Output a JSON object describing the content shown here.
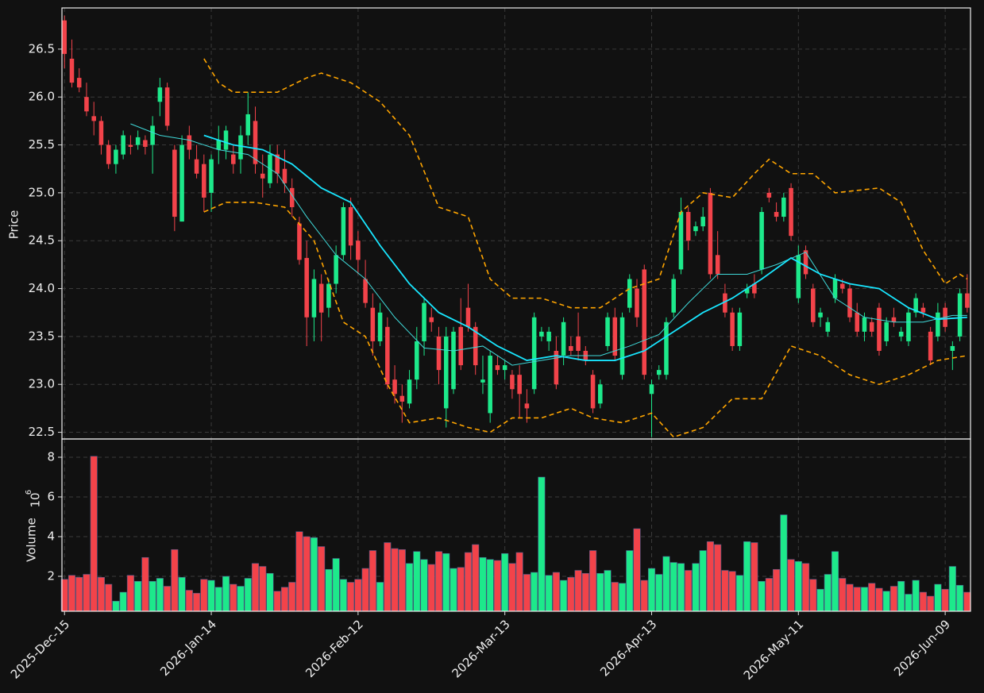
{
  "chart_data": {
    "type": "candlestick",
    "y_label": "Price",
    "volume_label": "Volume",
    "volume_offset_base": "10",
    "volume_offset_exponent": "6",
    "up_color": "#1de98b",
    "down_color": "#f2434a",
    "grid": true,
    "xlim": [
      -0.35,
      123.45
    ],
    "xticks": [
      {
        "value": 0,
        "label": "2025-Dec-15"
      },
      {
        "value": 20,
        "label": "2026-Jan-14"
      },
      {
        "value": 40,
        "label": "2026-Feb-12"
      },
      {
        "value": 60,
        "label": "2026-Mar-13"
      },
      {
        "value": 80,
        "label": "2026-Apr-13"
      },
      {
        "value": 100,
        "label": "2026-May-11"
      },
      {
        "value": 120,
        "label": "2026-Jun-09"
      }
    ],
    "ylim": [
      22.43,
      26.93
    ],
    "yticks": [
      22.5,
      {
        "value": 23,
        "label": "23.0"
      },
      23.5,
      {
        "value": 24,
        "label": "24.0"
      },
      24.5,
      {
        "value": 25,
        "label": "25.0"
      },
      25.5,
      {
        "value": 26,
        "label": "26.0"
      },
      26.5
    ],
    "volume_ylim": [
      0.24,
      8.92
    ],
    "volume_yticks": [
      2,
      4,
      6,
      8
    ],
    "ohlc": [
      [
        26.8,
        26.85,
        26.3,
        26.45
      ],
      [
        26.4,
        26.6,
        26.1,
        26.15
      ],
      [
        26.2,
        26.3,
        26.05,
        26.1
      ],
      [
        26.0,
        26.15,
        25.8,
        25.85
      ],
      [
        25.8,
        25.95,
        25.6,
        25.75
      ],
      [
        25.75,
        25.8,
        25.4,
        25.5
      ],
      [
        25.5,
        25.55,
        25.25,
        25.3
      ],
      [
        25.3,
        25.5,
        25.2,
        25.45
      ],
      [
        25.4,
        25.65,
        25.35,
        25.6
      ],
      [
        25.5,
        25.6,
        25.4,
        25.48
      ],
      [
        25.5,
        25.65,
        25.45,
        25.58
      ],
      [
        25.55,
        25.6,
        25.4,
        25.48
      ],
      [
        25.5,
        25.8,
        25.2,
        25.7
      ],
      [
        25.95,
        26.2,
        25.8,
        26.1
      ],
      [
        26.1,
        26.15,
        25.65,
        25.7
      ],
      [
        25.45,
        25.5,
        24.6,
        24.75
      ],
      [
        24.7,
        25.6,
        24.7,
        25.5
      ],
      [
        25.6,
        25.7,
        25.35,
        25.45
      ],
      [
        25.35,
        25.5,
        25.15,
        25.2
      ],
      [
        25.3,
        25.4,
        24.8,
        24.95
      ],
      [
        25.0,
        25.4,
        24.8,
        25.35
      ],
      [
        25.45,
        25.7,
        25.3,
        25.55
      ],
      [
        25.45,
        25.7,
        25.35,
        25.65
      ],
      [
        25.4,
        25.5,
        25.2,
        25.3
      ],
      [
        25.35,
        25.7,
        25.2,
        25.6
      ],
      [
        25.6,
        26.05,
        25.5,
        25.82
      ],
      [
        25.75,
        25.9,
        25.2,
        25.3
      ],
      [
        25.2,
        25.4,
        24.95,
        25.15
      ],
      [
        25.1,
        25.5,
        25.05,
        25.4
      ],
      [
        25.4,
        25.5,
        25.1,
        25.2
      ],
      [
        25.25,
        25.45,
        25.0,
        25.1
      ],
      [
        25.05,
        25.15,
        24.75,
        24.85
      ],
      [
        24.68,
        24.75,
        24.25,
        24.3
      ],
      [
        24.32,
        24.5,
        23.4,
        23.7
      ],
      [
        23.7,
        24.2,
        23.45,
        24.1
      ],
      [
        24.05,
        24.15,
        23.45,
        23.75
      ],
      [
        23.8,
        24.1,
        23.7,
        24.05
      ],
      [
        24.05,
        24.45,
        23.95,
        24.35
      ],
      [
        24.35,
        24.9,
        24.3,
        24.85
      ],
      [
        24.85,
        24.95,
        24.3,
        24.45
      ],
      [
        24.5,
        24.6,
        24.15,
        24.3
      ],
      [
        24.1,
        24.3,
        23.8,
        23.85
      ],
      [
        23.8,
        23.95,
        23.3,
        23.45
      ],
      [
        23.45,
        23.85,
        23.4,
        23.75
      ],
      [
        23.6,
        23.7,
        22.95,
        23.0
      ],
      [
        23.05,
        23.2,
        22.8,
        22.9
      ],
      [
        22.88,
        23.0,
        22.6,
        22.82
      ],
      [
        22.8,
        23.15,
        22.75,
        23.05
      ],
      [
        23.05,
        23.6,
        22.95,
        23.45
      ],
      [
        23.45,
        23.9,
        23.3,
        23.85
      ],
      [
        23.7,
        23.8,
        23.55,
        23.65
      ],
      [
        23.5,
        23.6,
        23.0,
        23.15
      ],
      [
        22.75,
        23.6,
        22.55,
        23.5
      ],
      [
        22.95,
        23.6,
        22.9,
        23.55
      ],
      [
        23.6,
        23.9,
        23.15,
        23.2
      ],
      [
        23.8,
        24.05,
        23.55,
        23.6
      ],
      [
        23.6,
        23.65,
        23.1,
        23.2
      ],
      [
        23.02,
        23.3,
        22.9,
        23.05
      ],
      [
        22.7,
        23.35,
        22.6,
        23.3
      ],
      [
        23.2,
        23.3,
        23.1,
        23.15
      ],
      [
        23.15,
        23.25,
        23.05,
        23.2
      ],
      [
        23.1,
        23.15,
        22.85,
        22.95
      ],
      [
        23.1,
        23.2,
        22.65,
        22.9
      ],
      [
        22.8,
        22.95,
        22.6,
        22.75
      ],
      [
        22.95,
        23.75,
        22.9,
        23.7
      ],
      [
        23.5,
        23.6,
        23.45,
        23.55
      ],
      [
        23.45,
        23.6,
        23.35,
        23.55
      ],
      [
        23.35,
        23.5,
        22.95,
        23.0
      ],
      [
        23.3,
        23.7,
        23.2,
        23.65
      ],
      [
        23.4,
        23.5,
        23.3,
        23.35
      ],
      [
        23.5,
        23.75,
        23.25,
        23.35
      ],
      [
        23.35,
        23.4,
        23.2,
        23.25
      ],
      [
        23.1,
        23.15,
        22.7,
        22.75
      ],
      [
        22.8,
        23.05,
        22.75,
        23.0
      ],
      [
        23.4,
        23.75,
        23.35,
        23.7
      ],
      [
        23.7,
        23.8,
        23.25,
        23.3
      ],
      [
        23.1,
        23.75,
        23.05,
        23.7
      ],
      [
        23.8,
        24.15,
        23.75,
        24.1
      ],
      [
        24.0,
        24.1,
        23.6,
        23.7
      ],
      [
        24.2,
        24.25,
        23.05,
        23.1
      ],
      [
        22.9,
        23.05,
        22.45,
        23.0
      ],
      [
        23.1,
        23.2,
        23.05,
        23.15
      ],
      [
        23.1,
        23.7,
        23.05,
        23.65
      ],
      [
        23.75,
        24.15,
        23.7,
        24.1
      ],
      [
        24.2,
        24.95,
        24.15,
        24.8
      ],
      [
        24.8,
        24.85,
        24.4,
        24.5
      ],
      [
        24.6,
        24.7,
        24.55,
        24.65
      ],
      [
        24.65,
        24.85,
        24.6,
        24.75
      ],
      [
        25.0,
        25.05,
        24.1,
        24.15
      ],
      [
        24.35,
        24.6,
        24.1,
        24.15
      ],
      [
        23.95,
        24.05,
        23.7,
        23.75
      ],
      [
        23.75,
        23.8,
        23.35,
        23.4
      ],
      [
        23.4,
        23.8,
        23.35,
        23.75
      ],
      [
        23.95,
        24.05,
        23.9,
        24.0
      ],
      [
        24.05,
        24.15,
        23.9,
        23.95
      ],
      [
        24.2,
        24.85,
        24.15,
        24.8
      ],
      [
        25.0,
        25.05,
        24.9,
        24.95
      ],
      [
        24.8,
        24.9,
        24.7,
        24.75
      ],
      [
        24.75,
        25.0,
        24.7,
        24.95
      ],
      [
        25.05,
        25.1,
        24.5,
        24.55
      ],
      [
        23.9,
        24.45,
        23.85,
        24.35
      ],
      [
        24.4,
        24.45,
        24.1,
        24.15
      ],
      [
        24.0,
        24.05,
        23.6,
        23.65
      ],
      [
        23.7,
        23.8,
        23.6,
        23.75
      ],
      [
        23.55,
        23.7,
        23.5,
        23.65
      ],
      [
        23.9,
        24.15,
        23.85,
        24.1
      ],
      [
        24.05,
        24.1,
        23.95,
        24.0
      ],
      [
        24.0,
        24.05,
        23.65,
        23.7
      ],
      [
        23.75,
        23.85,
        23.5,
        23.55
      ],
      [
        23.55,
        23.75,
        23.45,
        23.7
      ],
      [
        23.65,
        23.7,
        23.5,
        23.55
      ],
      [
        23.8,
        23.85,
        23.3,
        23.35
      ],
      [
        23.45,
        23.7,
        23.4,
        23.65
      ],
      [
        23.7,
        23.8,
        23.6,
        23.65
      ],
      [
        23.5,
        23.6,
        23.45,
        23.55
      ],
      [
        23.45,
        23.8,
        23.4,
        23.75
      ],
      [
        23.75,
        23.95,
        23.7,
        23.9
      ],
      [
        23.8,
        23.85,
        23.7,
        23.75
      ],
      [
        23.55,
        23.6,
        23.2,
        23.25
      ],
      [
        23.5,
        23.85,
        23.45,
        23.75
      ],
      [
        23.8,
        23.85,
        23.55,
        23.6
      ],
      [
        23.35,
        23.45,
        23.15,
        23.4
      ],
      [
        23.5,
        24.0,
        23.45,
        23.95
      ],
      [
        23.95,
        24.15,
        23.75,
        23.8
      ]
    ],
    "volume": [
      1.85,
      2.05,
      1.95,
      2.1,
      8.05,
      1.95,
      1.6,
      0.75,
      1.2,
      2.05,
      1.75,
      2.95,
      1.75,
      1.9,
      1.5,
      3.35,
      1.95,
      1.3,
      1.15,
      1.85,
      1.8,
      1.45,
      2.0,
      1.6,
      1.5,
      1.9,
      2.65,
      2.5,
      2.15,
      1.25,
      1.45,
      1.7,
      4.25,
      4.0,
      3.95,
      3.5,
      2.35,
      2.9,
      1.85,
      1.7,
      1.85,
      2.4,
      3.3,
      1.7,
      3.7,
      3.4,
      3.35,
      2.65,
      3.25,
      2.85,
      2.6,
      3.25,
      3.15,
      2.4,
      2.45,
      3.2,
      3.6,
      2.95,
      2.85,
      2.8,
      3.15,
      2.65,
      3.2,
      2.1,
      2.2,
      7.0,
      2.05,
      2.2,
      1.8,
      1.95,
      2.3,
      2.15,
      3.3,
      2.15,
      2.3,
      1.7,
      1.65,
      3.3,
      4.4,
      1.8,
      2.4,
      2.1,
      3.0,
      2.7,
      2.65,
      2.3,
      2.65,
      3.3,
      3.75,
      3.6,
      2.3,
      2.25,
      2.05,
      3.75,
      3.7,
      1.75,
      1.9,
      2.35,
      5.1,
      2.85,
      2.75,
      2.65,
      1.85,
      1.35,
      2.1,
      3.25,
      1.9,
      1.6,
      1.45,
      1.45,
      1.65,
      1.4,
      1.25,
      1.5,
      1.75,
      1.1,
      1.8,
      1.2,
      1.0,
      1.6,
      1.35,
      2.5,
      1.55,
      1.2
    ],
    "lines": [
      {
        "color": "#3fd9d9",
        "dashed": false,
        "x": [
          9,
          13,
          17,
          21,
          25,
          29,
          33,
          37,
          41,
          45,
          49,
          53,
          57,
          61,
          65,
          69,
          73,
          77,
          81,
          85,
          89,
          93,
          97,
          101,
          105,
          109,
          113,
          117,
          121,
          123
        ],
        "values": [
          25.72,
          25.6,
          25.55,
          25.45,
          25.4,
          25.2,
          24.75,
          24.35,
          24.1,
          23.7,
          23.38,
          23.35,
          23.4,
          23.2,
          23.25,
          23.3,
          23.3,
          23.4,
          23.52,
          23.85,
          24.15,
          24.15,
          24.25,
          24.38,
          23.9,
          23.7,
          23.65,
          23.65,
          23.72,
          23.72
        ]
      },
      {
        "color": "#18e6ff",
        "dashed": false,
        "x": [
          19,
          23,
          27,
          31,
          35,
          39,
          43,
          47,
          51,
          55,
          59,
          63,
          67,
          71,
          75,
          79,
          83,
          87,
          91,
          95,
          99,
          103,
          107,
          111,
          115,
          119,
          123
        ],
        "values": [
          25.6,
          25.5,
          25.45,
          25.3,
          25.05,
          24.9,
          24.45,
          24.05,
          23.75,
          23.6,
          23.4,
          23.25,
          23.3,
          23.25,
          23.25,
          23.35,
          23.55,
          23.75,
          23.9,
          24.1,
          24.32,
          24.15,
          24.05,
          24.0,
          23.8,
          23.68,
          23.7
        ]
      },
      {
        "color": "#ffa500",
        "dashed": true,
        "x": [
          19,
          21,
          23,
          25,
          29,
          33,
          35,
          39,
          43,
          47,
          51,
          55,
          58,
          61,
          65,
          69,
          73,
          77,
          81,
          84,
          87,
          91,
          94,
          96,
          99,
          102,
          105,
          111,
          114,
          117,
          120,
          122,
          123
        ],
        "values": [
          26.4,
          26.15,
          26.05,
          26.05,
          26.05,
          26.2,
          26.25,
          26.15,
          25.95,
          25.6,
          24.85,
          24.75,
          24.1,
          23.9,
          23.9,
          23.8,
          23.8,
          24.0,
          24.1,
          24.8,
          25.0,
          24.95,
          25.2,
          25.35,
          25.2,
          25.2,
          25.0,
          25.05,
          24.9,
          24.4,
          24.05,
          24.15,
          24.1
        ]
      },
      {
        "color": "#ffa500",
        "dashed": true,
        "x": [
          19,
          22,
          26,
          30,
          34,
          38,
          41,
          44,
          47,
          51,
          55,
          58,
          61,
          65,
          69,
          72,
          76,
          80,
          83,
          87,
          91,
          95,
          99,
          103,
          107,
          111,
          115,
          119,
          123
        ],
        "values": [
          24.8,
          24.9,
          24.9,
          24.85,
          24.5,
          23.65,
          23.5,
          23.0,
          22.6,
          22.65,
          22.55,
          22.5,
          22.65,
          22.65,
          22.75,
          22.65,
          22.6,
          22.7,
          22.45,
          22.55,
          22.85,
          22.85,
          23.4,
          23.3,
          23.1,
          23.0,
          23.1,
          23.25,
          23.3
        ]
      }
    ]
  }
}
